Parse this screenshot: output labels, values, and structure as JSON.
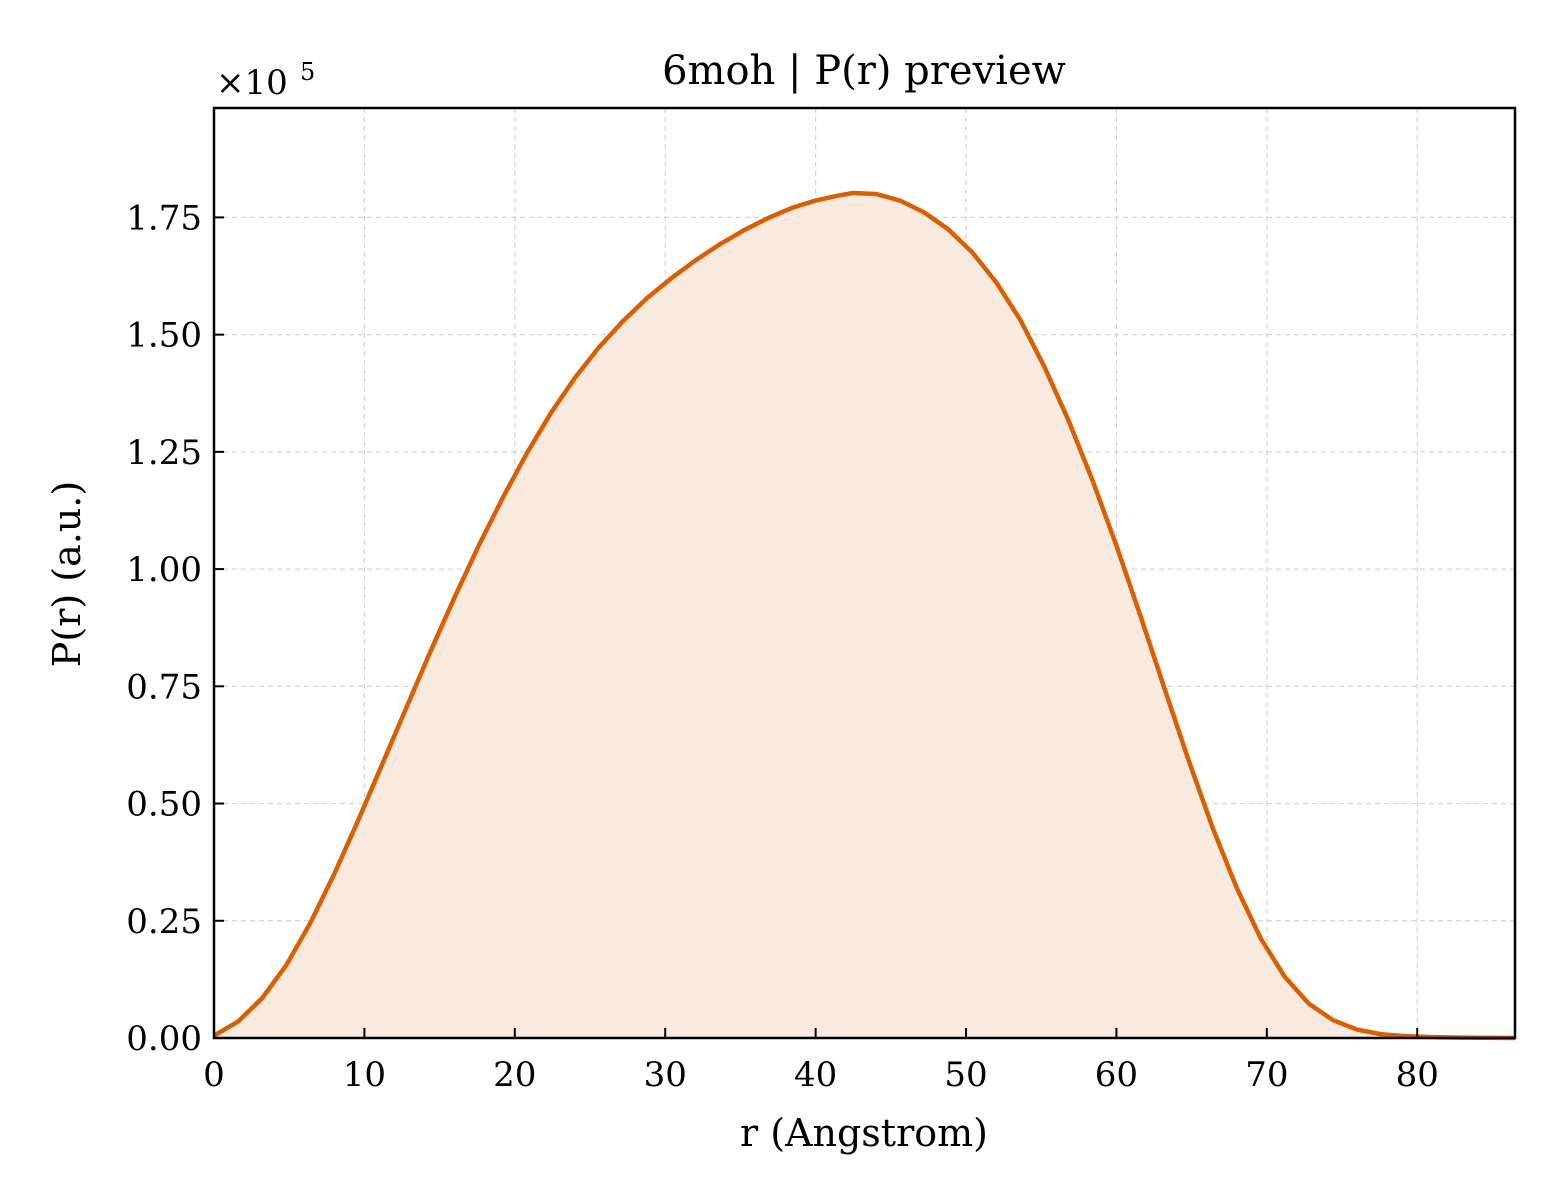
{
  "chart_data": {
    "type": "area",
    "title": "6moh | P(r) preview",
    "xlabel": "r (Angstrom)",
    "ylabel": "P(r) (a.u.)",
    "y_multiplier_label": "×10",
    "y_multiplier_exp": "5",
    "xlim": [
      0,
      86.5
    ],
    "ylim": [
      0,
      1.9833
    ],
    "xticks": [
      0,
      10,
      20,
      30,
      40,
      50,
      60,
      70,
      80
    ],
    "xtick_labels": [
      "0",
      "10",
      "20",
      "30",
      "40",
      "50",
      "60",
      "70",
      "80"
    ],
    "yticks": [
      0,
      0.25,
      0.5,
      0.75,
      1.0,
      1.25,
      1.5,
      1.75
    ],
    "ytick_labels": [
      "0.00",
      "0.25",
      "0.50",
      "0.75",
      "1.00",
      "1.25",
      "1.50",
      "1.75"
    ],
    "grid": true,
    "line_color": "#d95f02",
    "fill_color": "#f9eadf",
    "series": [
      {
        "x": [
          0,
          1.6,
          3.2,
          4.8,
          6.4,
          8.0,
          9.6,
          11.2,
          12.8,
          14.4,
          16.0,
          17.6,
          19.2,
          20.8,
          22.4,
          24.0,
          25.6,
          27.2,
          28.8,
          30.4,
          32.0,
          33.6,
          35.2,
          36.8,
          38.4,
          40.0,
          41.6,
          42.5,
          44.0,
          45.6,
          47.2,
          48.8,
          50.4,
          52.0,
          53.6,
          55.2,
          56.8,
          58.4,
          60.0,
          61.6,
          63.2,
          64.8,
          66.4,
          68.0,
          69.6,
          71.2,
          72.8,
          74.4,
          76.0,
          77.6,
          79.2,
          80.8,
          82.4,
          84.0,
          85.6,
          86.5
        ],
        "y": [
          0.005,
          0.035,
          0.085,
          0.155,
          0.245,
          0.35,
          0.465,
          0.585,
          0.705,
          0.825,
          0.94,
          1.05,
          1.152,
          1.247,
          1.333,
          1.408,
          1.473,
          1.529,
          1.578,
          1.62,
          1.658,
          1.692,
          1.722,
          1.748,
          1.77,
          1.786,
          1.797,
          1.802,
          1.8,
          1.786,
          1.761,
          1.725,
          1.676,
          1.612,
          1.532,
          1.432,
          1.318,
          1.19,
          1.05,
          0.9,
          0.745,
          0.592,
          0.448,
          0.32,
          0.212,
          0.13,
          0.073,
          0.038,
          0.018,
          0.008,
          0.004,
          0.002,
          0.001,
          0.0005,
          0.0002,
          0.0001
        ]
      }
    ]
  }
}
